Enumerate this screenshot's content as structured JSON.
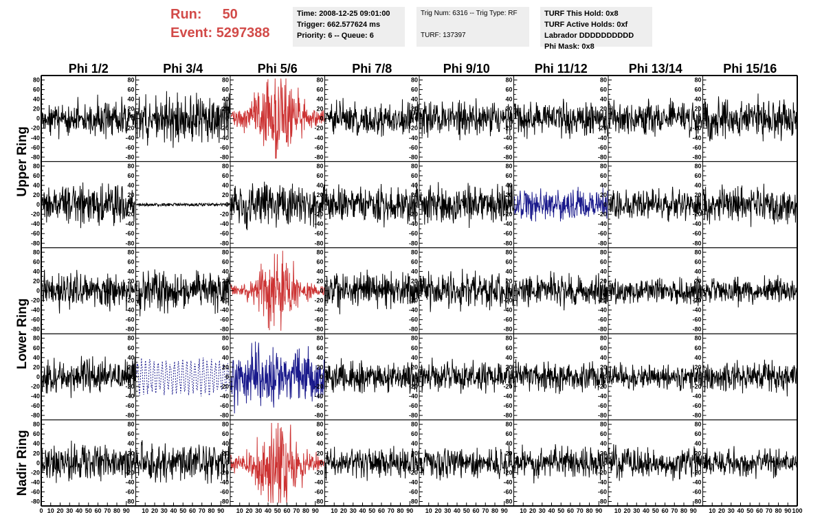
{
  "header": {
    "run_label": "Run:",
    "run_value": "50",
    "event_label": "Event:",
    "event_value": "5297388"
  },
  "info_boxes": [
    {
      "lines": [
        "Time: 2008-12-25 09:01:00",
        "Trigger: 662.577624 ms",
        "Priority: 6 -- Queue: 6"
      ]
    },
    {
      "lines": [
        "Trig Num: 6316 -- Trig Type: RF",
        "",
        "TURF: 137397"
      ]
    },
    {
      "lines": [
        "TURF This Hold: 0x8",
        "TURF Active Holds: 0xf",
        "Labrador DDDDDDDDDD",
        "Phi Mask: 0x8"
      ]
    }
  ],
  "colors": {
    "normal": "#000000",
    "highlight": "#cc3333",
    "masked": "#1a1a8c",
    "run_text": "#d24a48"
  },
  "chart_data": {
    "type": "line",
    "column_titles": [
      "Phi 1/2",
      "Phi 3/4",
      "Phi 5/6",
      "Phi 7/8",
      "Phi 9/10",
      "Phi 11/12",
      "Phi 13/14",
      "Phi 15/16"
    ],
    "ring_labels": [
      "Upper Ring",
      "Lower Ring",
      "Nadir Ring"
    ],
    "y_ticks": [
      -80,
      -60,
      -40,
      -20,
      0,
      20,
      40,
      60,
      80
    ],
    "x_ticks": [
      0,
      10,
      20,
      30,
      40,
      50,
      60,
      70,
      80,
      90,
      100
    ],
    "ylim": [
      -85,
      85
    ],
    "xlim": [
      0,
      100
    ],
    "samples": 260,
    "rows": [
      {
        "panels": [
          {
            "style": "normal",
            "amp": 18
          },
          {
            "style": "normal",
            "amp": 24
          },
          {
            "style": "highlight",
            "amp": 30,
            "envelope": true
          },
          {
            "style": "normal",
            "amp": 17
          },
          {
            "style": "normal",
            "amp": 17
          },
          {
            "style": "normal",
            "amp": 17
          },
          {
            "style": "normal",
            "amp": 17
          },
          {
            "style": "normal",
            "amp": 20
          }
        ]
      },
      {
        "panels": [
          {
            "style": "normal",
            "amp": 20
          },
          {
            "style": "flat",
            "amp": 3
          },
          {
            "style": "normal",
            "amp": 20
          },
          {
            "style": "normal",
            "amp": 18
          },
          {
            "style": "normal",
            "amp": 18
          },
          {
            "style": "masked",
            "amp": 15
          },
          {
            "style": "normal",
            "amp": 16
          },
          {
            "style": "normal",
            "amp": 18
          }
        ]
      },
      {
        "panels": [
          {
            "style": "normal",
            "amp": 17
          },
          {
            "style": "normal",
            "amp": 20
          },
          {
            "style": "highlight",
            "amp": 22,
            "envelope": true
          },
          {
            "style": "normal",
            "amp": 17
          },
          {
            "style": "normal",
            "amp": 17
          },
          {
            "style": "normal",
            "amp": 15
          },
          {
            "style": "normal",
            "amp": 13
          },
          {
            "style": "normal",
            "amp": 13
          }
        ]
      },
      {
        "panels": [
          {
            "style": "normal",
            "amp": 17
          },
          {
            "style": "masked_dashed",
            "amp": 30
          },
          {
            "style": "masked",
            "amp": 28
          },
          {
            "style": "normal",
            "amp": 15
          },
          {
            "style": "normal",
            "amp": 15
          },
          {
            "style": "normal",
            "amp": 15
          },
          {
            "style": "normal",
            "amp": 13
          },
          {
            "style": "normal",
            "amp": 15
          }
        ]
      },
      {
        "panels": [
          {
            "style": "normal",
            "amp": 17
          },
          {
            "style": "normal",
            "amp": 19
          },
          {
            "style": "highlight",
            "amp": 30,
            "envelope": true
          },
          {
            "style": "normal",
            "amp": 15
          },
          {
            "style": "normal",
            "amp": 15
          },
          {
            "style": "normal",
            "amp": 15
          },
          {
            "style": "normal",
            "amp": 15
          },
          {
            "style": "normal",
            "amp": 13
          }
        ]
      }
    ]
  }
}
